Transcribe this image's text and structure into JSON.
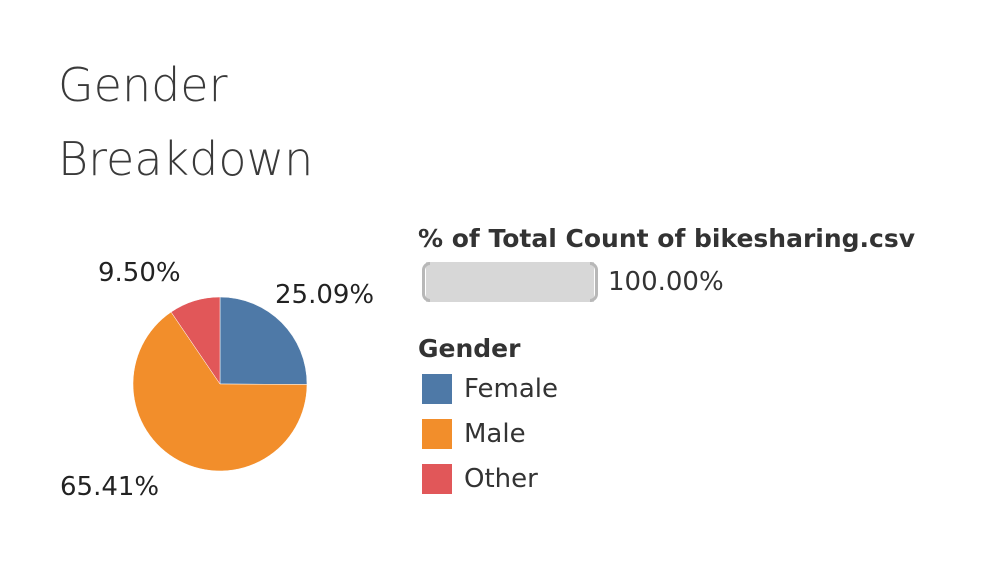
{
  "chart_data": {
    "type": "pie",
    "title_lines": [
      "Gender",
      "Breakdown"
    ],
    "size_legend": {
      "title": "% of Total Count of bikesharing.csv",
      "value": "100.00%"
    },
    "legend": {
      "title": "Gender",
      "placement": "right"
    },
    "slices": [
      {
        "name": "Female",
        "value": 25.09,
        "label": "25.09%",
        "color": "#4e79a7"
      },
      {
        "name": "Male",
        "value": 65.41,
        "label": "65.41%",
        "color": "#f28e2b"
      },
      {
        "name": "Other",
        "value": 9.5,
        "label": "9.50%",
        "color": "#e15759"
      }
    ]
  }
}
